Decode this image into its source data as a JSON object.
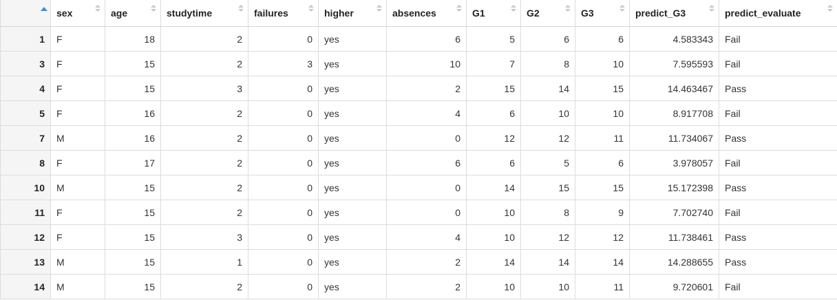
{
  "colors": {
    "accent": "#3a8fd9",
    "border": "#dcdcdc",
    "rowname_bg": "#f5f5f5"
  },
  "table": {
    "columns": [
      "sex",
      "age",
      "studytime",
      "failures",
      "higher",
      "absences",
      "G1",
      "G2",
      "G3",
      "predict_G3",
      "predict_evaluate"
    ],
    "rows": [
      {
        "name": "1",
        "cells": [
          "F",
          "18",
          "2",
          "0",
          "yes",
          "6",
          "5",
          "6",
          "6",
          "4.583343",
          "Fail"
        ]
      },
      {
        "name": "3",
        "cells": [
          "F",
          "15",
          "2",
          "3",
          "yes",
          "10",
          "7",
          "8",
          "10",
          "7.595593",
          "Fail"
        ]
      },
      {
        "name": "4",
        "cells": [
          "F",
          "15",
          "3",
          "0",
          "yes",
          "2",
          "15",
          "14",
          "15",
          "14.463467",
          "Pass"
        ]
      },
      {
        "name": "5",
        "cells": [
          "F",
          "16",
          "2",
          "0",
          "yes",
          "4",
          "6",
          "10",
          "10",
          "8.917708",
          "Fail"
        ]
      },
      {
        "name": "7",
        "cells": [
          "M",
          "16",
          "2",
          "0",
          "yes",
          "0",
          "12",
          "12",
          "11",
          "11.734067",
          "Pass"
        ]
      },
      {
        "name": "8",
        "cells": [
          "F",
          "17",
          "2",
          "0",
          "yes",
          "6",
          "6",
          "5",
          "6",
          "3.978057",
          "Fail"
        ]
      },
      {
        "name": "10",
        "cells": [
          "M",
          "15",
          "2",
          "0",
          "yes",
          "0",
          "14",
          "15",
          "15",
          "15.172398",
          "Pass"
        ]
      },
      {
        "name": "11",
        "cells": [
          "F",
          "15",
          "2",
          "0",
          "yes",
          "0",
          "10",
          "8",
          "9",
          "7.702740",
          "Fail"
        ]
      },
      {
        "name": "12",
        "cells": [
          "F",
          "15",
          "3",
          "0",
          "yes",
          "4",
          "10",
          "12",
          "12",
          "11.738461",
          "Pass"
        ]
      },
      {
        "name": "13",
        "cells": [
          "M",
          "15",
          "1",
          "0",
          "yes",
          "2",
          "14",
          "14",
          "14",
          "14.288655",
          "Pass"
        ]
      },
      {
        "name": "14",
        "cells": [
          "M",
          "15",
          "2",
          "0",
          "yes",
          "2",
          "10",
          "10",
          "11",
          "9.720601",
          "Fail"
        ]
      }
    ]
  }
}
